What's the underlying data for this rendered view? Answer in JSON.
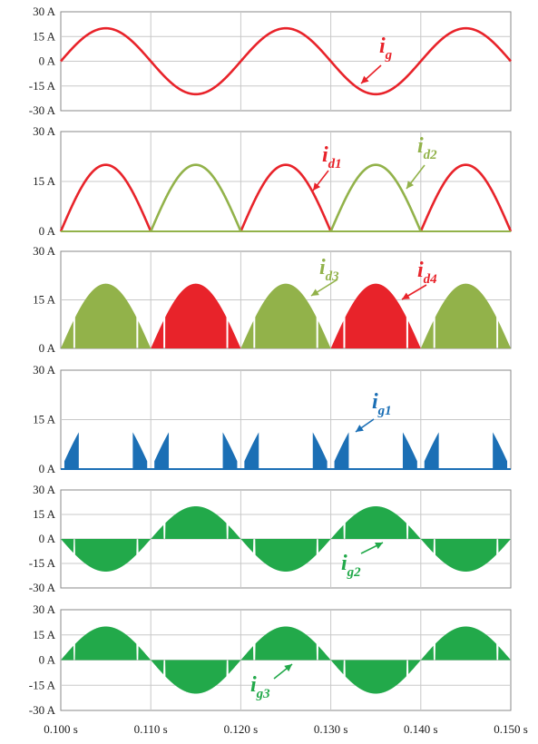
{
  "chart_data": [
    {
      "type": "line",
      "x_range": [
        0.1,
        0.15
      ],
      "ylim": [
        -30,
        30
      ],
      "y_ticks": [
        "30 A",
        "15 A",
        "0 A",
        "-15 A",
        "-30 A"
      ],
      "grid": true,
      "series": [
        {
          "name_main": "i",
          "name_sub": "g",
          "color": "#e8232a",
          "style": "line",
          "waveform": "sine",
          "amplitude": 20,
          "frequency_hz": 50,
          "x": [
            0.1,
            0.15
          ]
        }
      ]
    },
    {
      "type": "line",
      "x_range": [
        0.1,
        0.15
      ],
      "ylim": [
        0,
        30
      ],
      "y_ticks": [
        "30 A",
        "15 A",
        "0 A"
      ],
      "grid": true,
      "series": [
        {
          "name_main": "i",
          "name_sub": "d1",
          "color": "#e8232a",
          "style": "line",
          "waveform": "positive half-sine",
          "amplitude": 20,
          "active_intervals": [
            [
              0.1,
              0.11
            ],
            [
              0.12,
              0.13
            ],
            [
              0.14,
              0.15
            ]
          ]
        },
        {
          "name_main": "i",
          "name_sub": "d2",
          "color": "#92b24a",
          "style": "line",
          "waveform": "negative half-sine, inverted",
          "amplitude": 20,
          "active_intervals": [
            [
              0.11,
              0.12
            ],
            [
              0.13,
              0.14
            ]
          ]
        }
      ]
    },
    {
      "type": "area",
      "x_range": [
        0.1,
        0.15
      ],
      "ylim": [
        0,
        30
      ],
      "y_ticks": [
        "30 A",
        "15 A",
        "0 A"
      ],
      "grid": true,
      "series": [
        {
          "name_main": "i",
          "name_sub": "d3",
          "color": "#92b24a",
          "style": "fill",
          "waveform": "|sine| with switching notches",
          "amplitude": 20,
          "active_intervals": [
            [
              0.1,
              0.11
            ],
            [
              0.12,
              0.13
            ],
            [
              0.14,
              0.15
            ]
          ]
        },
        {
          "name_main": "i",
          "name_sub": "d4",
          "color": "#e8232a",
          "style": "fill",
          "waveform": "|sine| with switching notches",
          "amplitude": 20,
          "active_intervals": [
            [
              0.11,
              0.12
            ],
            [
              0.13,
              0.14
            ]
          ]
        }
      ]
    },
    {
      "type": "area",
      "x_range": [
        0.1,
        0.15
      ],
      "ylim": [
        0,
        30
      ],
      "y_ticks": [
        "30 A",
        "15 A",
        "0 A"
      ],
      "grid": true,
      "series": [
        {
          "name_main": "i",
          "name_sub": "g1",
          "color": "#1b6fb5",
          "style": "fill",
          "waveform": "notch pulses of |sine|",
          "amplitude": 20,
          "pulse_intervals": [
            [
              0.1004,
              0.102
            ],
            [
              0.108,
              0.1096
            ],
            [
              0.1104,
              0.112
            ],
            [
              0.118,
              0.1196
            ],
            [
              0.1204,
              0.122
            ],
            [
              0.128,
              0.1296
            ],
            [
              0.1304,
              0.132
            ],
            [
              0.138,
              0.1396
            ],
            [
              0.1404,
              0.142
            ],
            [
              0.148,
              0.1496
            ]
          ]
        }
      ]
    },
    {
      "type": "area",
      "x_range": [
        0.1,
        0.15
      ],
      "ylim": [
        -30,
        30
      ],
      "y_ticks": [
        "30 A",
        "15 A",
        "0 A",
        "-15 A",
        "-30 A"
      ],
      "grid": true,
      "series": [
        {
          "name_main": "i",
          "name_sub": "g2",
          "color": "#22a94a",
          "style": "fill",
          "waveform": "-sine with switching notches",
          "amplitude": 20,
          "frequency_hz": 50
        }
      ]
    },
    {
      "type": "area",
      "x_range": [
        0.1,
        0.15
      ],
      "ylim": [
        -30,
        30
      ],
      "y_ticks": [
        "30 A",
        "15 A",
        "0 A",
        "-15 A",
        "-30 A"
      ],
      "grid": true,
      "x_ticks": [
        "0.100 s",
        "0.110 s",
        "0.120 s",
        "0.130 s",
        "0.140 s",
        "0.150 s"
      ],
      "series": [
        {
          "name_main": "i",
          "name_sub": "g3",
          "color": "#22a94a",
          "style": "fill",
          "waveform": "sine with switching notches",
          "amplitude": 20,
          "frequency_hz": 50
        }
      ]
    }
  ]
}
